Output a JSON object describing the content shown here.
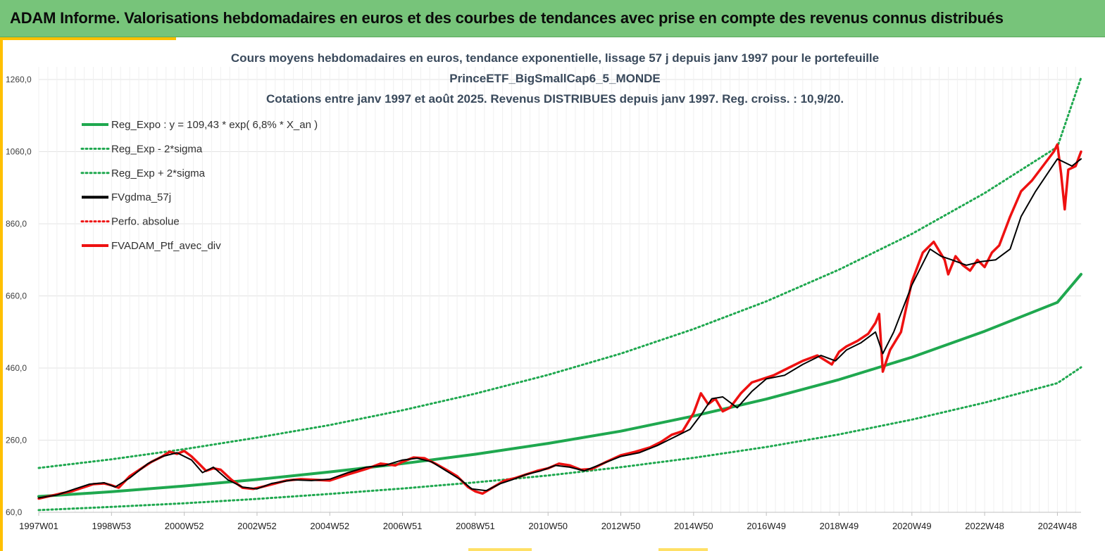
{
  "banner": {
    "title": "ADAM Informe. Valorisations hebdomadaires en euros et des courbes de tendances avec prise en compte des revenus connus distribués"
  },
  "colors": {
    "banner_bg": "#77c47a",
    "accent": "#ffc000",
    "trend": "#1fa84f",
    "smooth": "#000000",
    "price": "#ee1111"
  },
  "chart_data": {
    "type": "line",
    "title_lines": [
      "Cours moyens hebdomadaires  en euros, tendance exponentielle, lissage 57 j depuis janv 1997 pour le portefeuille",
      "PrinceETF_BigSmallCap6_5_MONDE",
      "Cotations  entre janv 1997 et août 2025. Revenus DISTRIBUES depuis janv 1997. Reg. croiss. : 10,9/20."
    ],
    "xlabel": "",
    "ylabel": "",
    "ylim": [
      60,
      1260
    ],
    "xlim": [
      1997.0,
      2025.65
    ],
    "y_ticks": [
      "60,0",
      "260,0",
      "460,0",
      "660,0",
      "860,0",
      "1060,0",
      "1260,0"
    ],
    "y_tick_values": [
      60,
      260,
      460,
      660,
      860,
      1060,
      1260
    ],
    "x_ticks": [
      "1997W01",
      "1998W53",
      "2000W52",
      "2002W52",
      "2004W52",
      "2006W51",
      "2008W51",
      "2010W50",
      "2012W50",
      "2014W50",
      "2016W49",
      "2018W49",
      "2020W49",
      "2022W48",
      "2024W48"
    ],
    "x_tick_values": [
      1997.0,
      1999.0,
      2001.0,
      2003.0,
      2005.0,
      2007.0,
      2009.0,
      2011.0,
      2013.0,
      2015.0,
      2017.0,
      2019.0,
      2021.0,
      2023.0,
      2025.0
    ],
    "grid": true,
    "legend_placement": "top-left",
    "series": [
      {
        "name": "Reg_Expo : y = 109,43 * exp( 6,8% *  X_an )",
        "style": "solid",
        "color": "#1fa84f",
        "x": [
          1997.0,
          1999.0,
          2001.0,
          2003.0,
          2005.0,
          2007.0,
          2009.0,
          2011.0,
          2013.0,
          2015.0,
          2017.0,
          2019.0,
          2021.0,
          2023.0,
          2025.0,
          2025.65
        ],
        "y": [
          104,
          117,
          133,
          151,
          172,
          195,
          221,
          251,
          285,
          327,
          374,
          428,
          490,
          562,
          642,
          720
        ]
      },
      {
        "name": "Reg_Exp - 2*sigma",
        "style": "dotted",
        "color": "#1fa84f",
        "x": [
          1997.0,
          1999.0,
          2001.0,
          2003.0,
          2005.0,
          2007.0,
          2009.0,
          2011.0,
          2013.0,
          2015.0,
          2017.0,
          2019.0,
          2021.0,
          2023.0,
          2025.0,
          2025.65
        ],
        "y": [
          66,
          75,
          85,
          97,
          111,
          126,
          143,
          162,
          185,
          211,
          241,
          276,
          317,
          364,
          418,
          462
        ]
      },
      {
        "name": "Reg_Exp + 2*sigma",
        "style": "dotted",
        "color": "#1fa84f",
        "x": [
          1997.0,
          1999.0,
          2001.0,
          2003.0,
          2005.0,
          2007.0,
          2009.0,
          2011.0,
          2013.0,
          2015.0,
          2017.0,
          2019.0,
          2021.0,
          2023.0,
          2025.0,
          2025.65
        ],
        "y": [
          183,
          207,
          235,
          267,
          302,
          343,
          389,
          441,
          500,
          568,
          645,
          733,
          832,
          945,
          1073,
          1265
        ]
      },
      {
        "name": "FVgdma_57j",
        "style": "solid",
        "color": "#000000",
        "x": [
          1997.0,
          1997.5,
          1998.0,
          1998.4,
          1998.8,
          1999.1,
          1999.5,
          2000.0,
          2000.4,
          2000.8,
          2001.2,
          2001.5,
          2001.8,
          2002.2,
          2002.6,
          2003.0,
          2003.4,
          2004.0,
          2004.5,
          2005.0,
          2005.5,
          2006.0,
          2006.5,
          2007.0,
          2007.4,
          2007.8,
          2008.2,
          2008.6,
          2008.9,
          2009.3,
          2009.7,
          2010.0,
          2010.4,
          2010.8,
          2011.2,
          2011.6,
          2012.0,
          2012.5,
          2013.0,
          2013.5,
          2014.0,
          2014.3,
          2014.6,
          2014.9,
          2015.2,
          2015.5,
          2015.8,
          2016.2,
          2016.6,
          2017.0,
          2017.5,
          2018.0,
          2018.5,
          2018.9,
          2019.2,
          2019.6,
          2020.0,
          2020.2,
          2020.5,
          2021.0,
          2021.5,
          2021.8,
          2022.1,
          2022.5,
          2022.9,
          2023.3,
          2023.7,
          2024.0,
          2024.4,
          2024.8,
          2025.0,
          2025.2,
          2025.4,
          2025.65
        ],
        "y": [
          100,
          108,
          125,
          138,
          142,
          130,
          155,
          195,
          215,
          225,
          205,
          170,
          185,
          150,
          130,
          125,
          140,
          150,
          148,
          152,
          170,
          185,
          190,
          205,
          210,
          200,
          175,
          150,
          125,
          120,
          140,
          150,
          165,
          175,
          190,
          185,
          175,
          195,
          215,
          225,
          245,
          260,
          275,
          290,
          330,
          375,
          380,
          350,
          395,
          430,
          440,
          470,
          495,
          480,
          510,
          530,
          560,
          500,
          560,
          690,
          790,
          770,
          760,
          745,
          755,
          760,
          790,
          880,
          950,
          1010,
          1040,
          1030,
          1020,
          1040
        ]
      },
      {
        "name": "Perfo. absolue",
        "style": "dotted",
        "color": "#ee1111",
        "x": [],
        "y": []
      },
      {
        "name": "FVADAM_Ptf_avec_div",
        "style": "solid",
        "color": "#ee1111",
        "x": [
          1997.0,
          1997.3,
          1997.6,
          1997.9,
          1998.2,
          1998.5,
          1998.8,
          1999.0,
          1999.2,
          1999.5,
          1999.8,
          2000.1,
          2000.4,
          2000.6,
          2000.8,
          2001.0,
          2001.2,
          2001.4,
          2001.6,
          2001.8,
          2002.0,
          2002.3,
          2002.6,
          2002.9,
          2003.2,
          2003.5,
          2003.8,
          2004.2,
          2004.6,
          2005.0,
          2005.5,
          2006.0,
          2006.4,
          2006.8,
          2007.0,
          2007.3,
          2007.6,
          2007.9,
          2008.2,
          2008.5,
          2008.8,
          2009.0,
          2009.2,
          2009.5,
          2009.8,
          2010.1,
          2010.4,
          2010.7,
          2011.0,
          2011.3,
          2011.6,
          2011.9,
          2012.2,
          2012.6,
          2013.0,
          2013.4,
          2013.8,
          2014.1,
          2014.4,
          2014.7,
          2015.0,
          2015.2,
          2015.4,
          2015.6,
          2015.8,
          2016.0,
          2016.3,
          2016.6,
          2016.9,
          2017.2,
          2017.6,
          2018.0,
          2018.4,
          2018.8,
          2019.0,
          2019.2,
          2019.5,
          2019.8,
          2020.0,
          2020.1,
          2020.2,
          2020.4,
          2020.7,
          2021.0,
          2021.3,
          2021.6,
          2021.9,
          2022.0,
          2022.2,
          2022.4,
          2022.6,
          2022.8,
          2023.0,
          2023.2,
          2023.4,
          2023.7,
          2024.0,
          2024.3,
          2024.6,
          2024.9,
          2025.0,
          2025.1,
          2025.2,
          2025.3,
          2025.5,
          2025.65
        ],
        "y": [
          98,
          105,
          112,
          118,
          128,
          138,
          140,
          135,
          128,
          160,
          180,
          200,
          215,
          228,
          222,
          230,
          215,
          195,
          175,
          182,
          178,
          150,
          128,
          125,
          132,
          140,
          148,
          152,
          150,
          148,
          165,
          180,
          195,
          190,
          200,
          212,
          210,
          195,
          178,
          160,
          130,
          118,
          112,
          130,
          148,
          155,
          165,
          175,
          182,
          195,
          190,
          178,
          180,
          200,
          218,
          228,
          240,
          255,
          275,
          285,
          335,
          390,
          360,
          375,
          340,
          350,
          390,
          420,
          430,
          440,
          460,
          480,
          495,
          470,
          505,
          520,
          535,
          555,
          585,
          610,
          450,
          510,
          560,
          700,
          780,
          810,
          760,
          720,
          770,
          745,
          730,
          760,
          740,
          780,
          800,
          880,
          950,
          980,
          1020,
          1060,
          1080,
          1000,
          900,
          1010,
          1020,
          1060
        ]
      }
    ]
  }
}
